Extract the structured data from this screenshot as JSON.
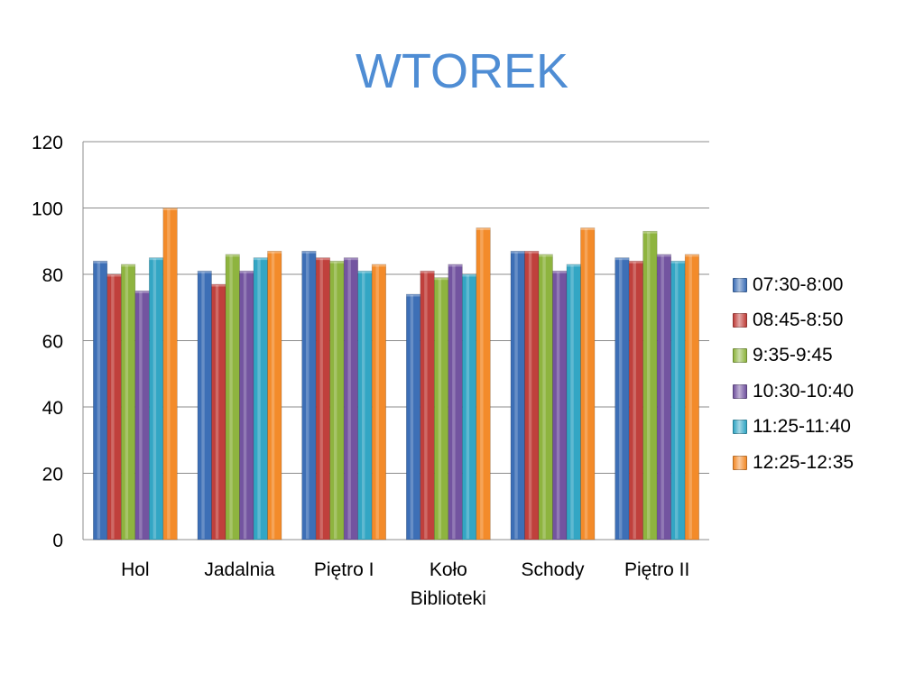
{
  "chart_data": {
    "type": "bar",
    "title": "WTOREK",
    "xlabel": "",
    "ylabel": "",
    "ylim": [
      0,
      120
    ],
    "yticks": [
      0,
      20,
      40,
      60,
      80,
      100,
      120
    ],
    "grid": true,
    "legend_position": "right",
    "categories": [
      "Hol",
      "Jadalnia",
      "Piętro I",
      "Koło Biblioteki",
      "Schody",
      "Piętro II"
    ],
    "category_lines": [
      [
        "Hol"
      ],
      [
        "Jadalnia"
      ],
      [
        "Piętro I"
      ],
      [
        "Koło",
        "Biblioteki"
      ],
      [
        "Schody"
      ],
      [
        "Piętro II"
      ]
    ],
    "series": [
      {
        "name": "07:30-8:00",
        "color": "#3d6fb6",
        "values": [
          84,
          81,
          87,
          74,
          87,
          85
        ]
      },
      {
        "name": "08:45-8:50",
        "color": "#c0403c",
        "values": [
          80,
          77,
          85,
          81,
          87,
          84
        ]
      },
      {
        "name": "9:35-9:45",
        "color": "#8eb43f",
        "values": [
          83,
          86,
          84,
          79,
          86,
          93
        ]
      },
      {
        "name": "10:30-10:40",
        "color": "#7354a0",
        "values": [
          75,
          81,
          85,
          83,
          81,
          86
        ]
      },
      {
        "name": "11:25-11:40",
        "color": "#33a6c4",
        "values": [
          85,
          85,
          81,
          80,
          83,
          84
        ]
      },
      {
        "name": "12:25-12:35",
        "color": "#f38b2a",
        "values": [
          100,
          87,
          83,
          94,
          94,
          86
        ]
      }
    ]
  }
}
